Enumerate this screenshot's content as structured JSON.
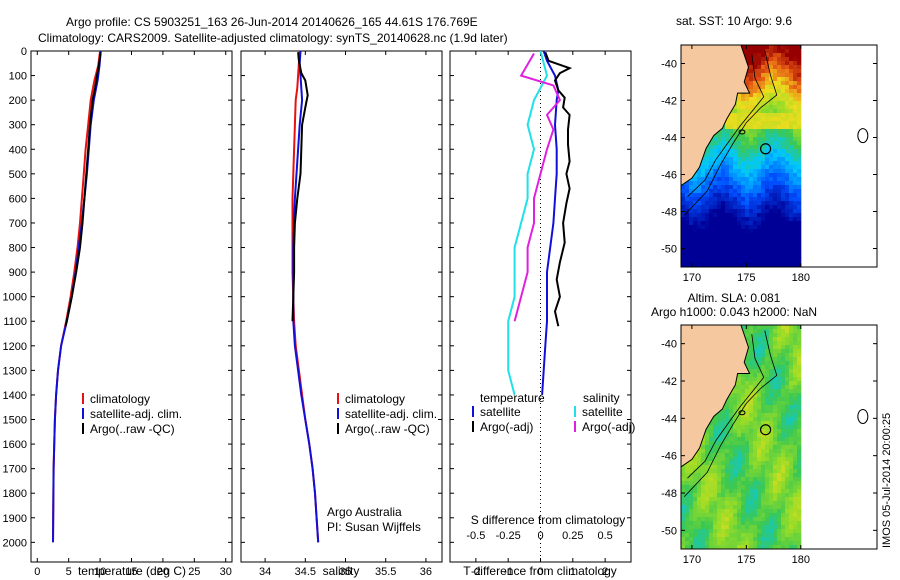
{
  "title_line1": "Argo profile: CS 5903251_163 26-Jun-2014 20140626_165 44.61S 176.769E",
  "title_line2": "Climatology: CARS2009. Satellite-adjusted climatology: synTS_20140628.nc (1.9d later)",
  "colors": {
    "clim": "#e81010",
    "sat": "#1010d8",
    "argo": "#000000",
    "cyan": "#20e0e8",
    "magenta": "#e020e0"
  },
  "chart_data": [
    {
      "type": "line",
      "id": "temperature",
      "xlabel": "temperature (deg C)",
      "ylabel": "",
      "xlim": [
        -1,
        31
      ],
      "ylim": [
        0,
        2080
      ],
      "xticks": [
        "0",
        "5",
        "10",
        "15",
        "20",
        "25",
        "30"
      ],
      "yticks": [
        "0",
        "100",
        "200",
        "300",
        "400",
        "500",
        "600",
        "700",
        "800",
        "900",
        "1000",
        "1100",
        "1200",
        "1300",
        "1400",
        "1500",
        "1600",
        "1700",
        "1800",
        "1900",
        "2000"
      ],
      "legend": [
        "climatology",
        "satellite-adj. clim.",
        "Argo(..raw -QC)"
      ],
      "series": [
        {
          "name": "climatology",
          "color": "#e81010",
          "points": [
            [
              10,
              0
            ],
            [
              9.7,
              60
            ],
            [
              9.1,
              120
            ],
            [
              8.5,
              200
            ],
            [
              8.1,
              300
            ],
            [
              7.7,
              400
            ],
            [
              7.4,
              500
            ],
            [
              7.1,
              600
            ],
            [
              6.8,
              700
            ],
            [
              6.4,
              800
            ],
            [
              5.9,
              900
            ],
            [
              5.3,
              1000
            ],
            [
              4.6,
              1100
            ],
            [
              3.8,
              1200
            ],
            [
              3.3,
              1300
            ],
            [
              3.0,
              1400
            ],
            [
              2.8,
              1500
            ],
            [
              2.6,
              1700
            ],
            [
              2.5,
              2000
            ]
          ]
        },
        {
          "name": "satellite-adj. clim.",
          "color": "#1010d8",
          "points": [
            [
              10.1,
              0
            ],
            [
              9.9,
              60
            ],
            [
              9.6,
              120
            ],
            [
              9.0,
              200
            ],
            [
              8.5,
              300
            ],
            [
              8.2,
              400
            ],
            [
              7.9,
              500
            ],
            [
              7.5,
              600
            ],
            [
              7.1,
              700
            ],
            [
              6.6,
              800
            ],
            [
              6.1,
              900
            ],
            [
              5.5,
              1000
            ],
            [
              4.7,
              1100
            ],
            [
              3.8,
              1200
            ],
            [
              3.3,
              1300
            ],
            [
              3.0,
              1400
            ],
            [
              2.8,
              1500
            ],
            [
              2.6,
              1700
            ],
            [
              2.5,
              2000
            ]
          ]
        },
        {
          "name": "Argo(..raw -QC)",
          "color": "#000000",
          "points": [
            [
              10.1,
              5
            ],
            [
              9.8,
              60
            ],
            [
              9.5,
              100
            ],
            [
              9.2,
              150
            ],
            [
              8.8,
              200
            ],
            [
              8.6,
              250
            ],
            [
              8.4,
              300
            ],
            [
              8.1,
              400
            ],
            [
              7.8,
              500
            ],
            [
              7.5,
              600
            ],
            [
              7.2,
              700
            ],
            [
              6.8,
              800
            ],
            [
              6.2,
              900
            ],
            [
              5.5,
              1000
            ],
            [
              4.7,
              1100
            ],
            [
              4.5,
              1120
            ]
          ]
        }
      ]
    },
    {
      "type": "line",
      "id": "salinity",
      "xlabel": "salinity",
      "ylabel": "",
      "xlim": [
        33.7,
        36.2
      ],
      "ylim": [
        0,
        2080
      ],
      "xticks": [
        "34",
        "34.5",
        "35",
        "35.5",
        "36"
      ],
      "legend": [
        "climatology",
        "satellite-adj. clim.",
        "Argo(..raw -QC)"
      ],
      "annotation": [
        "Argo Australia",
        "PI: Susan Wijffels"
      ],
      "series": [
        {
          "name": "climatology",
          "color": "#e81010",
          "points": [
            [
              34.43,
              0
            ],
            [
              34.42,
              50
            ],
            [
              34.41,
              100
            ],
            [
              34.4,
              150
            ],
            [
              34.38,
              200
            ],
            [
              34.37,
              300
            ],
            [
              34.36,
              400
            ],
            [
              34.35,
              500
            ],
            [
              34.34,
              600
            ],
            [
              34.34,
              700
            ],
            [
              34.34,
              800
            ],
            [
              34.34,
              900
            ],
            [
              34.35,
              1000
            ],
            [
              34.36,
              1100
            ],
            [
              34.38,
              1200
            ],
            [
              34.42,
              1300
            ],
            [
              34.46,
              1400
            ],
            [
              34.5,
              1500
            ],
            [
              34.55,
              1600
            ],
            [
              34.59,
              1700
            ],
            [
              34.62,
              1800
            ],
            [
              34.64,
              1900
            ],
            [
              34.66,
              2000
            ]
          ]
        },
        {
          "name": "satellite-adj. clim.",
          "color": "#1010d8",
          "points": [
            [
              34.44,
              0
            ],
            [
              34.43,
              50
            ],
            [
              34.44,
              100
            ],
            [
              34.45,
              150
            ],
            [
              34.46,
              200
            ],
            [
              34.43,
              300
            ],
            [
              34.41,
              400
            ],
            [
              34.39,
              500
            ],
            [
              34.37,
              600
            ],
            [
              34.36,
              700
            ],
            [
              34.35,
              800
            ],
            [
              34.35,
              900
            ],
            [
              34.35,
              1000
            ],
            [
              34.35,
              1100
            ],
            [
              34.37,
              1200
            ],
            [
              34.41,
              1300
            ],
            [
              34.45,
              1400
            ],
            [
              34.5,
              1500
            ],
            [
              34.55,
              1600
            ],
            [
              34.59,
              1700
            ],
            [
              34.62,
              1800
            ],
            [
              34.64,
              1900
            ],
            [
              34.66,
              2000
            ]
          ]
        },
        {
          "name": "Argo(..raw -QC)",
          "color": "#000000",
          "points": [
            [
              34.41,
              5
            ],
            [
              34.42,
              40
            ],
            [
              34.45,
              90
            ],
            [
              34.5,
              120
            ],
            [
              34.53,
              180
            ],
            [
              34.5,
              230
            ],
            [
              34.46,
              300
            ],
            [
              34.45,
              400
            ],
            [
              34.44,
              500
            ],
            [
              34.4,
              600
            ],
            [
              34.37,
              700
            ],
            [
              34.36,
              800
            ],
            [
              34.36,
              900
            ],
            [
              34.35,
              1000
            ],
            [
              34.34,
              1100
            ]
          ]
        }
      ]
    },
    {
      "type": "line",
      "id": "difference",
      "xlabel": "T difference from climatology",
      "xlabel_top": "S difference from climatology",
      "xlim": [
        -2.8,
        2.8
      ],
      "ylim": [
        0,
        2080
      ],
      "xticks": [
        "-2",
        "-1",
        "0",
        "1",
        "2"
      ],
      "xticks_s": [
        "-0.5",
        "-0.25",
        "0",
        "0.25",
        "0.5"
      ],
      "legend_temperature": [
        "temperature",
        "satellite",
        "Argo(-adj)"
      ],
      "legend_salinity": [
        "salinity",
        "satellite",
        "Argo(-adj)"
      ],
      "series": [
        {
          "name": "T satellite",
          "color": "#1010d8",
          "points": [
            [
              0.1,
              0
            ],
            [
              0.2,
              40
            ],
            [
              0.45,
              100
            ],
            [
              0.55,
              160
            ],
            [
              0.5,
              200
            ],
            [
              0.45,
              300
            ],
            [
              0.5,
              400
            ],
            [
              0.5,
              500
            ],
            [
              0.45,
              600
            ],
            [
              0.4,
              700
            ],
            [
              0.3,
              800
            ],
            [
              0.2,
              900
            ],
            [
              0.2,
              1000
            ],
            [
              0.2,
              1100
            ],
            [
              0.15,
              1200
            ],
            [
              0.1,
              1300
            ],
            [
              0.05,
              1400
            ]
          ]
        },
        {
          "name": "T Argo(-adj)",
          "color": "#000000",
          "points": [
            [
              0.15,
              5
            ],
            [
              0.25,
              40
            ],
            [
              0.9,
              70
            ],
            [
              0.6,
              90
            ],
            [
              0.45,
              120
            ],
            [
              0.55,
              160
            ],
            [
              0.75,
              190
            ],
            [
              0.7,
              230
            ],
            [
              0.9,
              260
            ],
            [
              0.85,
              320
            ],
            [
              0.85,
              380
            ],
            [
              0.9,
              450
            ],
            [
              0.8,
              500
            ],
            [
              0.9,
              560
            ],
            [
              0.8,
              620
            ],
            [
              0.7,
              700
            ],
            [
              0.75,
              780
            ],
            [
              0.6,
              860
            ],
            [
              0.5,
              930
            ],
            [
              0.6,
              1000
            ],
            [
              0.45,
              1060
            ],
            [
              0.55,
              1120
            ]
          ]
        },
        {
          "name": "S satellite",
          "color": "#20e0e8",
          "points": [
            [
              0.0,
              0
            ],
            [
              0.05,
              100
            ],
            [
              -0.05,
              200
            ],
            [
              -0.1,
              300
            ],
            [
              -0.05,
              400
            ],
            [
              -0.1,
              500
            ],
            [
              -0.1,
              600
            ],
            [
              -0.15,
              700
            ],
            [
              -0.2,
              800
            ],
            [
              -0.2,
              900
            ],
            [
              -0.2,
              1000
            ],
            [
              -0.25,
              1100
            ],
            [
              -0.25,
              1200
            ],
            [
              -0.25,
              1300
            ],
            [
              -0.2,
              1400
            ]
          ]
        },
        {
          "name": "S Argo(-adj)",
          "color": "#e020e0",
          "points": [
            [
              -0.05,
              10
            ],
            [
              -0.15,
              100
            ],
            [
              0.1,
              140
            ],
            [
              0.15,
              200
            ],
            [
              0.05,
              260
            ],
            [
              0.1,
              320
            ],
            [
              0.05,
              400
            ],
            [
              0.0,
              500
            ],
            [
              -0.05,
              600
            ],
            [
              -0.05,
              700
            ],
            [
              -0.1,
              800
            ],
            [
              -0.1,
              900
            ],
            [
              -0.15,
              1000
            ],
            [
              -0.2,
              1100
            ]
          ]
        }
      ]
    },
    {
      "type": "heatmap",
      "id": "sst_map",
      "title": "sat. SST: 10 Argo: 9.6",
      "xticks": [
        "170",
        "175",
        "180"
      ],
      "yticks": [
        "-40",
        "-42",
        "-44",
        "-46",
        "-48",
        "-50"
      ],
      "xlim": [
        169,
        187
      ],
      "ylim": [
        -51,
        -39
      ],
      "float_lon": 176.769,
      "float_lat": -44.61
    },
    {
      "type": "heatmap",
      "id": "sla_map",
      "title_line1": "Altim. SLA: 0.081",
      "title_line2": "Argo h1000: 0.043 h2000: NaN",
      "xticks": [
        "170",
        "175",
        "180"
      ],
      "yticks": [
        "-40",
        "-42",
        "-44",
        "-46",
        "-48",
        "-50"
      ],
      "xlim": [
        169,
        187
      ],
      "ylim": [
        -51,
        -39
      ],
      "float_lon": 176.769,
      "float_lat": -44.61
    }
  ],
  "stamp": "IMOS 05-Jul-2014 20:00:25"
}
